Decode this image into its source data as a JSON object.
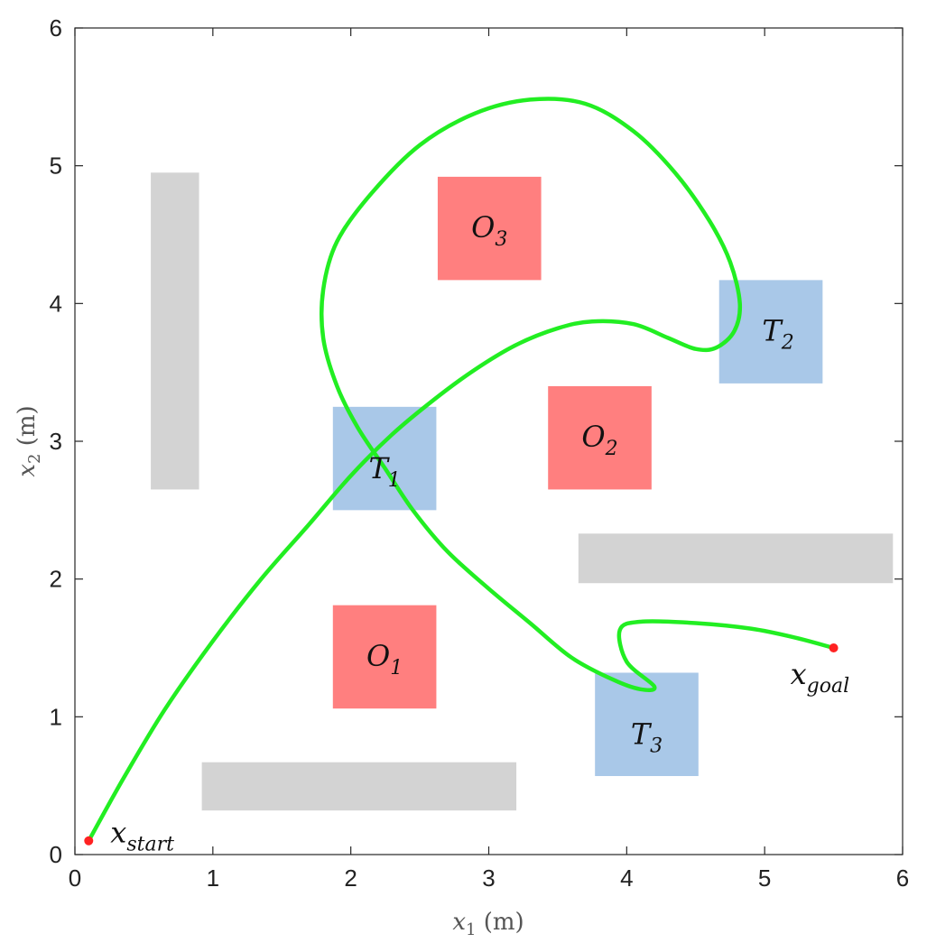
{
  "chart_data": {
    "type": "scatter",
    "title": "",
    "xlabel": "x",
    "xlabel_sub": "1",
    "xlabel_unit": " (m)",
    "ylabel": "x",
    "ylabel_sub": "2",
    "ylabel_unit": " (m)",
    "xlim": [
      0,
      6
    ],
    "ylim": [
      0,
      6
    ],
    "xticks": [
      "0",
      "1",
      "2",
      "3",
      "4",
      "5",
      "6"
    ],
    "yticks": [
      "0",
      "1",
      "2",
      "3",
      "4",
      "5",
      "6"
    ],
    "grid": false,
    "walls": [
      {
        "x": [
          0.55,
          0.9
        ],
        "y": [
          2.65,
          4.95
        ]
      },
      {
        "x": [
          0.92,
          3.2
        ],
        "y": [
          0.32,
          0.67
        ]
      },
      {
        "x": [
          3.65,
          5.93
        ],
        "y": [
          1.97,
          2.33
        ]
      }
    ],
    "obstacles": [
      {
        "label": "O",
        "sub": "1",
        "x": [
          1.87,
          2.62
        ],
        "y": [
          1.06,
          1.81
        ]
      },
      {
        "label": "O",
        "sub": "2",
        "x": [
          3.43,
          4.18
        ],
        "y": [
          2.65,
          3.4
        ]
      },
      {
        "label": "O",
        "sub": "3",
        "x": [
          2.63,
          3.38
        ],
        "y": [
          4.17,
          4.92
        ]
      }
    ],
    "targets": [
      {
        "label": "T",
        "sub": "1",
        "x": [
          1.87,
          2.62
        ],
        "y": [
          2.5,
          3.25
        ]
      },
      {
        "label": "T",
        "sub": "2",
        "x": [
          4.67,
          5.42
        ],
        "y": [
          3.42,
          4.17
        ]
      },
      {
        "label": "T",
        "sub": "3",
        "x": [
          3.77,
          4.52
        ],
        "y": [
          0.57,
          1.32
        ]
      }
    ],
    "start": {
      "label": "x",
      "sub": "start",
      "x": 0.1,
      "y": 0.1
    },
    "goal": {
      "label": "x",
      "sub": "goal",
      "x": 5.5,
      "y": 1.5
    },
    "trajectory": {
      "x": [
        0.1,
        0.35,
        0.65,
        1.0,
        1.35,
        1.7,
        2.0,
        2.3,
        2.6,
        2.9,
        3.2,
        3.5,
        3.75,
        4.05,
        4.3,
        4.5,
        4.65,
        4.78,
        4.82,
        4.75,
        4.6,
        4.35,
        4.05,
        3.7,
        3.3,
        2.9,
        2.5,
        2.15,
        1.9,
        1.8,
        1.8,
        1.9,
        2.05,
        2.25,
        2.45,
        2.7,
        3.0,
        3.3,
        3.6,
        3.9,
        4.1,
        4.2,
        4.0,
        3.95,
        4.1,
        4.5,
        4.9,
        5.2,
        5.5
      ],
      "y": [
        0.1,
        0.55,
        1.05,
        1.55,
        2.0,
        2.4,
        2.75,
        3.05,
        3.3,
        3.52,
        3.7,
        3.82,
        3.87,
        3.85,
        3.75,
        3.67,
        3.68,
        3.8,
        4.0,
        4.3,
        4.6,
        4.95,
        5.25,
        5.45,
        5.48,
        5.38,
        5.15,
        4.8,
        4.45,
        4.1,
        3.75,
        3.4,
        3.1,
        2.8,
        2.5,
        2.2,
        1.93,
        1.68,
        1.43,
        1.27,
        1.2,
        1.22,
        1.4,
        1.63,
        1.69,
        1.68,
        1.64,
        1.58,
        1.5
      ]
    }
  },
  "colors": {
    "trajectory": "#22ee22",
    "obstacle": "#ff7f7f",
    "target": "#a9c8e8",
    "wall": "#d3d3d3",
    "marker": "#ff2222",
    "axis": "#262626"
  }
}
